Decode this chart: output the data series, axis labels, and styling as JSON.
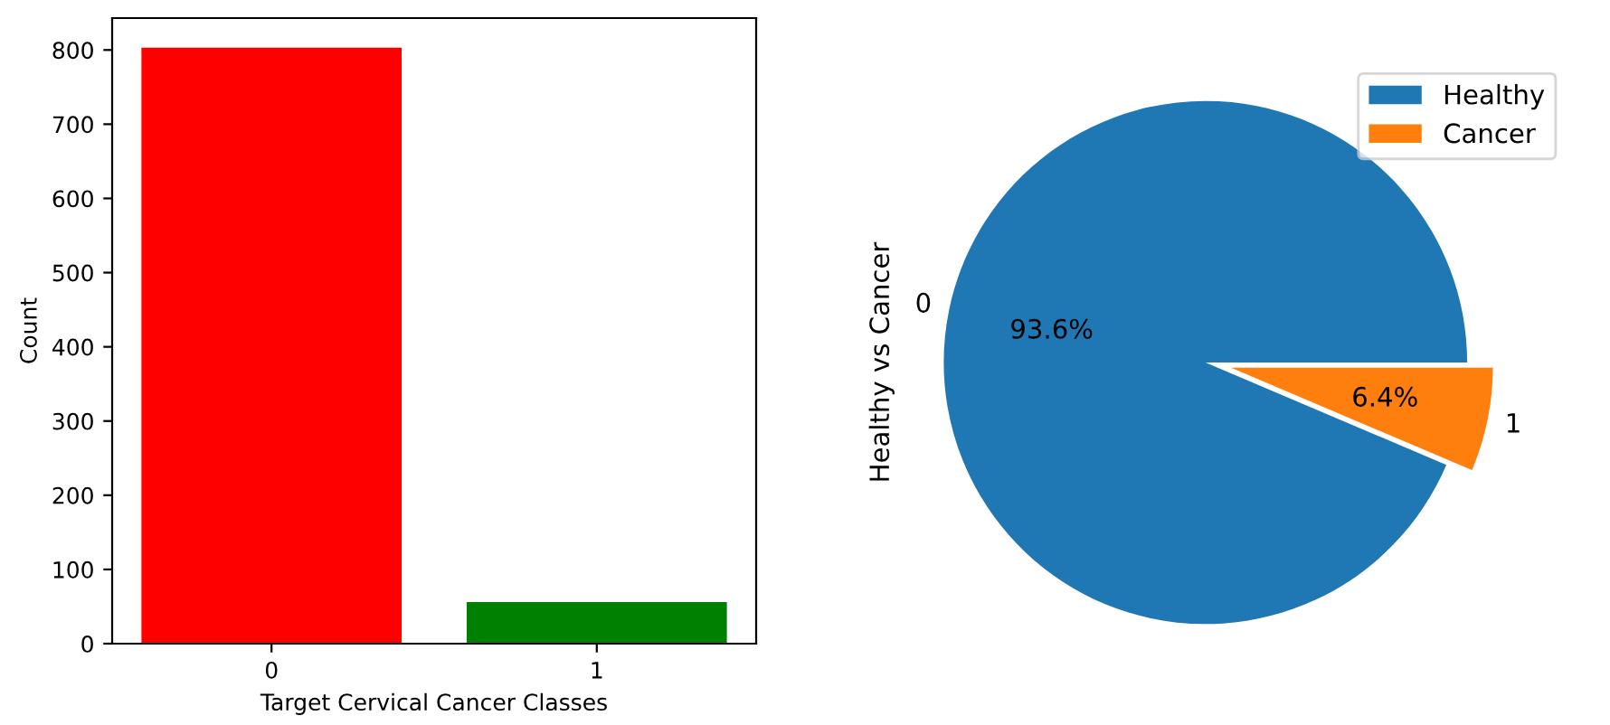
{
  "chart_data": [
    {
      "type": "bar",
      "xlabel": "Target Cervical Cancer Classes",
      "ylabel": "Count",
      "categories": [
        "0",
        "1"
      ],
      "values": [
        803,
        56
      ],
      "colors": [
        "#ff0000",
        "#008000"
      ],
      "ylim": [
        0,
        843
      ],
      "yticks": [
        0,
        100,
        200,
        300,
        400,
        500,
        600,
        700,
        800
      ],
      "grid": false
    },
    {
      "type": "pie",
      "ylabel": "Healthy vs Cancer",
      "categories": [
        "Healthy",
        "Cancer"
      ],
      "values": [
        93.6,
        6.4
      ],
      "colors": [
        "#1f77b4",
        "#ff7f0e"
      ],
      "value_labels": [
        "93.6%",
        "6.4%"
      ],
      "annotations": [
        "0",
        "1"
      ],
      "legend": "top right"
    }
  ]
}
